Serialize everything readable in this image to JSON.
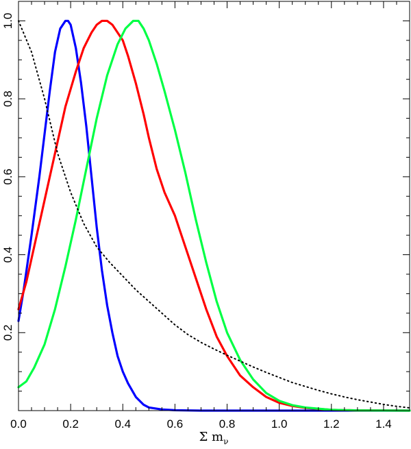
{
  "chart_data": {
    "type": "line",
    "title": "",
    "xlabel": "Σ m",
    "xlabel_subscript": "ν",
    "ylabel": "",
    "xlim": [
      0,
      1.5
    ],
    "ylim": [
      0,
      1.05
    ],
    "x_ticks": [
      0,
      0.2,
      0.4,
      0.6,
      0.8,
      1.0,
      1.2,
      1.4
    ],
    "x_tick_labels": [
      "0.0",
      "0.2",
      "0.4",
      "0.6",
      "0.8",
      "1.0",
      "1.2",
      "1.4"
    ],
    "y_ticks": [
      0.2,
      0.4,
      0.6,
      0.8,
      1.0
    ],
    "y_tick_labels": [
      "0.2",
      "0.4",
      "0.6",
      "0.8",
      "1.0"
    ],
    "grid": false,
    "legend": "none",
    "series": [
      {
        "color": "#0000ff",
        "style": "solid",
        "x": [
          0,
          0.02,
          0.05,
          0.08,
          0.1,
          0.12,
          0.14,
          0.16,
          0.18,
          0.19,
          0.2,
          0.22,
          0.24,
          0.26,
          0.28,
          0.3,
          0.32,
          0.34,
          0.36,
          0.38,
          0.4,
          0.42,
          0.45,
          0.48,
          0.5,
          0.55,
          0.6,
          0.7,
          0.8,
          1.0,
          1.2,
          1.5
        ],
        "y": [
          0.23,
          0.31,
          0.45,
          0.6,
          0.71,
          0.82,
          0.92,
          0.98,
          1.0,
          1.0,
          0.99,
          0.93,
          0.84,
          0.73,
          0.6,
          0.47,
          0.36,
          0.27,
          0.2,
          0.14,
          0.1,
          0.07,
          0.035,
          0.015,
          0.008,
          0.003,
          0.001,
          0.0,
          0.0,
          0.0,
          0.0,
          0.0
        ]
      },
      {
        "color": "#ff0000",
        "style": "solid",
        "x": [
          0,
          0.03,
          0.06,
          0.1,
          0.14,
          0.18,
          0.22,
          0.25,
          0.28,
          0.3,
          0.32,
          0.34,
          0.36,
          0.38,
          0.4,
          0.42,
          0.45,
          0.48,
          0.5,
          0.53,
          0.56,
          0.6,
          0.64,
          0.68,
          0.72,
          0.76,
          0.8,
          0.85,
          0.9,
          0.95,
          1.0,
          1.05,
          1.1,
          1.2,
          1.3,
          1.5
        ],
        "y": [
          0.26,
          0.33,
          0.42,
          0.54,
          0.66,
          0.78,
          0.87,
          0.93,
          0.97,
          0.99,
          1.0,
          1.0,
          0.99,
          0.97,
          0.95,
          0.91,
          0.84,
          0.76,
          0.7,
          0.62,
          0.56,
          0.5,
          0.42,
          0.34,
          0.26,
          0.19,
          0.14,
          0.09,
          0.06,
          0.035,
          0.02,
          0.012,
          0.007,
          0.002,
          0.0005,
          0.0
        ]
      },
      {
        "color": "#00ff44",
        "style": "solid",
        "x": [
          0,
          0.03,
          0.06,
          0.1,
          0.14,
          0.18,
          0.22,
          0.26,
          0.3,
          0.34,
          0.38,
          0.41,
          0.44,
          0.46,
          0.48,
          0.5,
          0.53,
          0.56,
          0.6,
          0.64,
          0.68,
          0.72,
          0.76,
          0.8,
          0.85,
          0.9,
          0.95,
          1.0,
          1.05,
          1.1,
          1.2,
          1.3,
          1.5
        ],
        "y": [
          0.06,
          0.075,
          0.11,
          0.17,
          0.26,
          0.37,
          0.49,
          0.62,
          0.75,
          0.86,
          0.94,
          0.98,
          1.0,
          1.0,
          0.98,
          0.95,
          0.89,
          0.82,
          0.72,
          0.61,
          0.49,
          0.38,
          0.28,
          0.2,
          0.13,
          0.08,
          0.045,
          0.025,
          0.014,
          0.008,
          0.002,
          0.0005,
          0.0
        ]
      },
      {
        "color": "#000000",
        "style": "dotted",
        "x": [
          0,
          0.05,
          0.1,
          0.15,
          0.2,
          0.25,
          0.3,
          0.35,
          0.4,
          0.45,
          0.5,
          0.55,
          0.6,
          0.65,
          0.7,
          0.75,
          0.8,
          0.85,
          0.9,
          0.95,
          1.0,
          1.05,
          1.1,
          1.15,
          1.2,
          1.25,
          1.3,
          1.35,
          1.4,
          1.45,
          1.5
        ],
        "y": [
          1.0,
          0.92,
          0.8,
          0.66,
          0.56,
          0.48,
          0.42,
          0.38,
          0.345,
          0.31,
          0.28,
          0.25,
          0.22,
          0.195,
          0.175,
          0.158,
          0.142,
          0.127,
          0.112,
          0.098,
          0.085,
          0.072,
          0.062,
          0.052,
          0.043,
          0.035,
          0.028,
          0.022,
          0.016,
          0.011,
          0.007
        ]
      }
    ]
  }
}
